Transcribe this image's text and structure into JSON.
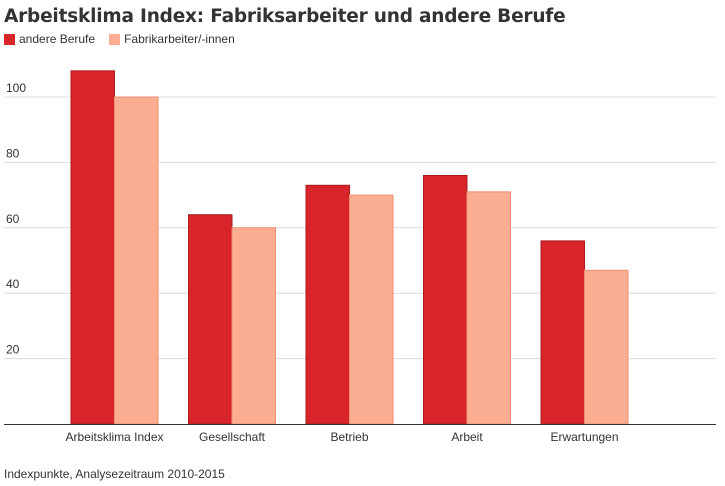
{
  "title": "Arbeitsklima Index: Fabriksarbeiter und andere Berufe",
  "footnote": "Indexpunkte, Analysezeitraum 2010-2015",
  "chart_data": {
    "type": "bar",
    "title": "Arbeitsklima Index: Fabriksarbeiter und andere Berufe",
    "xlabel": "",
    "ylabel": "",
    "ylim": [
      0,
      110
    ],
    "yticks": [
      20,
      40,
      60,
      80,
      100
    ],
    "grid": true,
    "legend_position": "top-left",
    "categories": [
      "Arbeitsklima Index",
      "Gesellschaft",
      "Betrieb",
      "Arbeit",
      "Erwartungen"
    ],
    "series": [
      {
        "name": "andere Berufe",
        "color": "#d7252a",
        "values": [
          108,
          64,
          73,
          76,
          56
        ]
      },
      {
        "name": "Fabrikarbeiter/-innen",
        "color": "#fcae93",
        "values": [
          100,
          60,
          70,
          71,
          47
        ]
      }
    ]
  }
}
